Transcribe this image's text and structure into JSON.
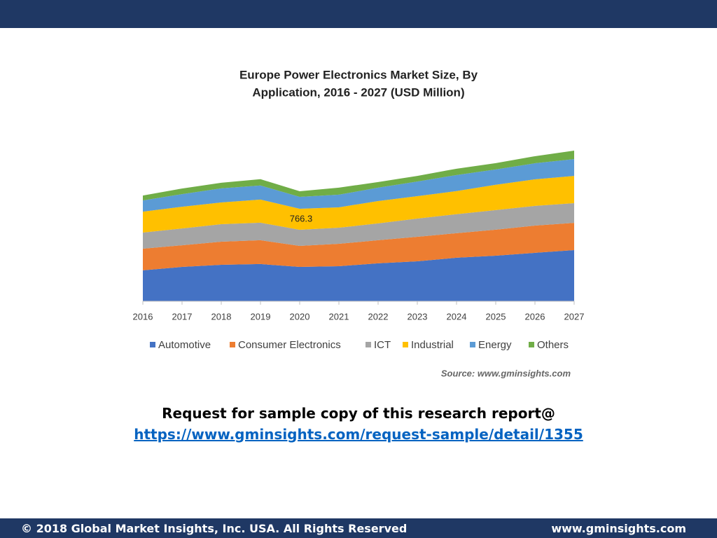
{
  "chart_data": {
    "type": "stacked-area",
    "title": [
      "Europe Power Electronics Market Size, By",
      "Application,  2016 - 2027 (USD Million)"
    ],
    "categories": [
      "2016",
      "2017",
      "2018",
      "2019",
      "2020",
      "2021",
      "2022",
      "2023",
      "2024",
      "2025",
      "2026",
      "2027"
    ],
    "series": [
      {
        "name": "Automotive",
        "color": "#4472c4",
        "values": [
          215,
          239,
          254,
          259,
          239.1,
          244,
          264,
          278,
          303,
          317,
          337,
          356
        ]
      },
      {
        "name": "Consumer Electronics",
        "color": "#ed7d31",
        "values": [
          151,
          151,
          161,
          166,
          146.4,
          156,
          161,
          171,
          171,
          181,
          190,
          190
        ]
      },
      {
        "name": "ICT",
        "color": "#a5a5a5",
        "values": [
          112,
          117,
          122,
          122,
          112.2,
          112,
          117,
          127,
          132,
          137,
          137,
          137
        ]
      },
      {
        "name": "Industrial",
        "color": "#ffc000",
        "values": [
          146,
          151,
          151,
          161,
          146.4,
          142,
          156,
          156,
          161,
          176,
          185,
          190
        ]
      },
      {
        "name": "Energy",
        "color": "#5b9bd5",
        "values": [
          78,
          88,
          98,
          98,
          83.0,
          88,
          93,
          102,
          112,
          107,
          112,
          117
        ]
      },
      {
        "name": "Others",
        "color": "#70ad47",
        "values": [
          34,
          39,
          39,
          44,
          39.2,
          49,
          39,
          39,
          44,
          44,
          49,
          59
        ]
      }
    ],
    "annotation": "766.3",
    "source": "Source: www.gminsights.com",
    "legend": "bottom"
  },
  "request": {
    "text": "Request for sample copy of this research report@",
    "link": "https://www.gminsights.com/request-sample/detail/1355"
  },
  "footer": {
    "left": "© 2018 Global Market Insights, Inc. USA. All Rights Reserved",
    "right": "www.gminsights.com"
  }
}
